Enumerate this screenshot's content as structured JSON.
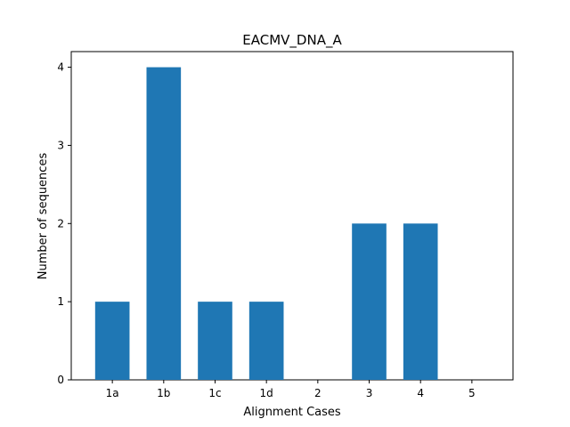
{
  "chart_data": {
    "type": "bar",
    "title": "EACMV_DNA_A",
    "xlabel": "Alignment Cases",
    "ylabel": "Number of sequences",
    "categories": [
      "1a",
      "1b",
      "1c",
      "1d",
      "2",
      "3",
      "4",
      "5"
    ],
    "values": [
      1,
      4,
      1,
      1,
      0,
      2,
      2,
      0
    ],
    "ylim": [
      0,
      4.2
    ],
    "yticks": [
      0,
      1,
      2,
      3,
      4
    ],
    "grid": false,
    "legend": "none",
    "bar_color": "#1f77b4"
  }
}
